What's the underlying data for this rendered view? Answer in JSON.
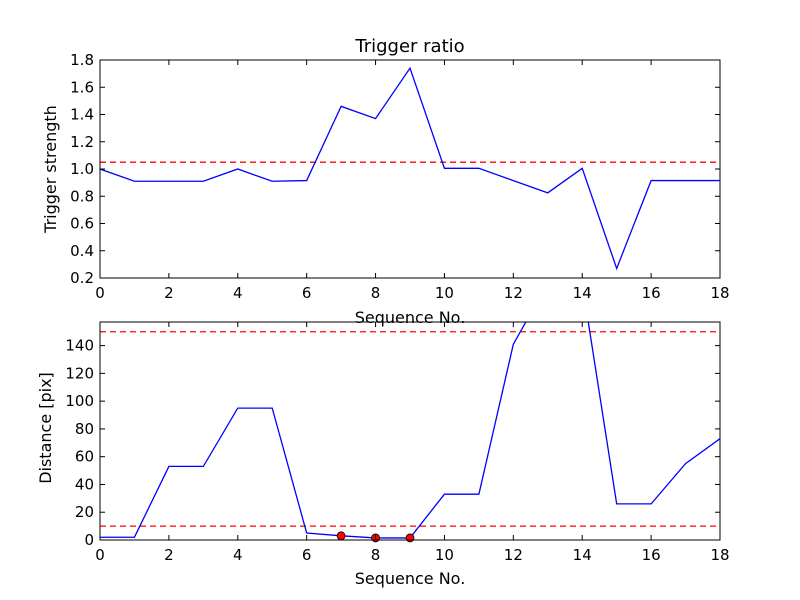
{
  "chart_data": [
    {
      "type": "line",
      "title": "Trigger ratio",
      "xlabel": "Sequence No.",
      "ylabel": "Trigger strength",
      "xlim": [
        0,
        18
      ],
      "ylim": [
        0.2,
        1.8
      ],
      "xticks": [
        "0",
        "2",
        "4",
        "6",
        "8",
        "10",
        "12",
        "14",
        "16",
        "18"
      ],
      "yticks": [
        "0.2",
        "0.4",
        "0.6",
        "0.8",
        "1.0",
        "1.2",
        "1.4",
        "1.6",
        "1.8"
      ],
      "grid": false,
      "series": [
        {
          "color": "#0000ff",
          "x": [
            0,
            1,
            2,
            3,
            4,
            5,
            6,
            7,
            8,
            9,
            10,
            11,
            12,
            13,
            14,
            15,
            16,
            17,
            18
          ],
          "y": [
            1.0,
            0.91,
            0.91,
            0.91,
            1.0,
            0.91,
            0.915,
            1.46,
            1.37,
            1.74,
            1.005,
            1.005,
            0.915,
            0.825,
            1.005,
            0.27,
            0.915,
            0.915,
            0.915
          ]
        }
      ],
      "hlines": [
        {
          "y": 1.05,
          "color": "#ff0000",
          "style": "dashed"
        }
      ]
    },
    {
      "type": "line",
      "title": "",
      "xlabel": "Sequence No.",
      "ylabel": "Distance [pix]",
      "xlim": [
        0,
        18
      ],
      "ylim": [
        0,
        157
      ],
      "xticks": [
        "0",
        "2",
        "4",
        "6",
        "8",
        "10",
        "12",
        "14",
        "16",
        "18"
      ],
      "yticks": [
        "0",
        "20",
        "40",
        "60",
        "80",
        "100",
        "120",
        "140"
      ],
      "grid": false,
      "series": [
        {
          "color": "#0000ff",
          "x": [
            0,
            1,
            2,
            3,
            4,
            5,
            6,
            7,
            8,
            9,
            10,
            11,
            12,
            13,
            14,
            15,
            16,
            17,
            18
          ],
          "y": [
            2,
            2,
            53,
            53,
            95,
            95,
            5,
            3,
            1.5,
            1.5,
            33,
            33,
            141,
            185,
            185,
            26,
            26,
            55,
            73
          ]
        }
      ],
      "hlines": [
        {
          "y": 150,
          "color": "#ff0000",
          "style": "dashed"
        },
        {
          "y": 10,
          "color": "#ff0000",
          "style": "dashed"
        }
      ],
      "markers": {
        "color": "#ff0000",
        "x": [
          7,
          8,
          9
        ],
        "y": [
          3,
          1.5,
          1.5
        ]
      }
    }
  ]
}
